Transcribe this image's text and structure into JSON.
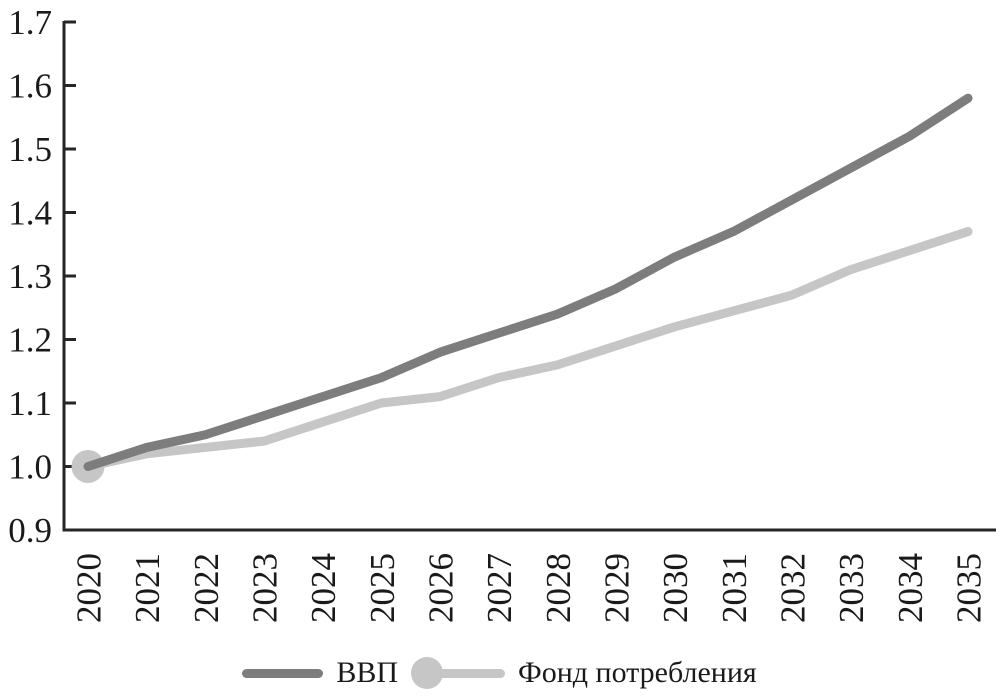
{
  "chart_data": {
    "type": "line",
    "x": [
      2020,
      2021,
      2022,
      2023,
      2024,
      2025,
      2026,
      2027,
      2028,
      2029,
      2030,
      2031,
      2032,
      2033,
      2034,
      2035
    ],
    "xtick_labels": [
      "2020",
      "2021",
      "2022",
      "2023",
      "2024",
      "2025",
      "2026",
      "2027",
      "2028",
      "2029",
      "2030",
      "2031",
      "2032",
      "2033",
      "2034",
      "2035"
    ],
    "series": [
      {
        "name": "ВВП",
        "color": "#7d7d7d",
        "values": [
          1.0,
          1.03,
          1.05,
          1.08,
          1.11,
          1.14,
          1.18,
          1.21,
          1.24,
          1.28,
          1.33,
          1.37,
          1.42,
          1.47,
          1.52,
          1.58
        ],
        "start_marker": false
      },
      {
        "name": "Фонд потребления",
        "color": "#c6c6c6",
        "values": [
          1.0,
          1.02,
          1.03,
          1.04,
          1.07,
          1.1,
          1.11,
          1.14,
          1.16,
          1.19,
          1.22,
          1.245,
          1.27,
          1.31,
          1.34,
          1.37
        ],
        "start_marker": true
      }
    ],
    "title": "",
    "xlabel": "",
    "ylabel": "",
    "ylim": [
      0.9,
      1.7
    ],
    "yticks": [
      0.9,
      1.0,
      1.1,
      1.2,
      1.3,
      1.4,
      1.5,
      1.6,
      1.7
    ],
    "ytick_labels": [
      "0.9",
      "1.0",
      "1.1",
      "1.2",
      "1.3",
      "1.4",
      "1.5",
      "1.6",
      "1.7"
    ],
    "grid": false,
    "legend_position": "bottom",
    "axis_color": "#262626",
    "text_color": "#1a1a1a",
    "background": "#ffffff"
  }
}
